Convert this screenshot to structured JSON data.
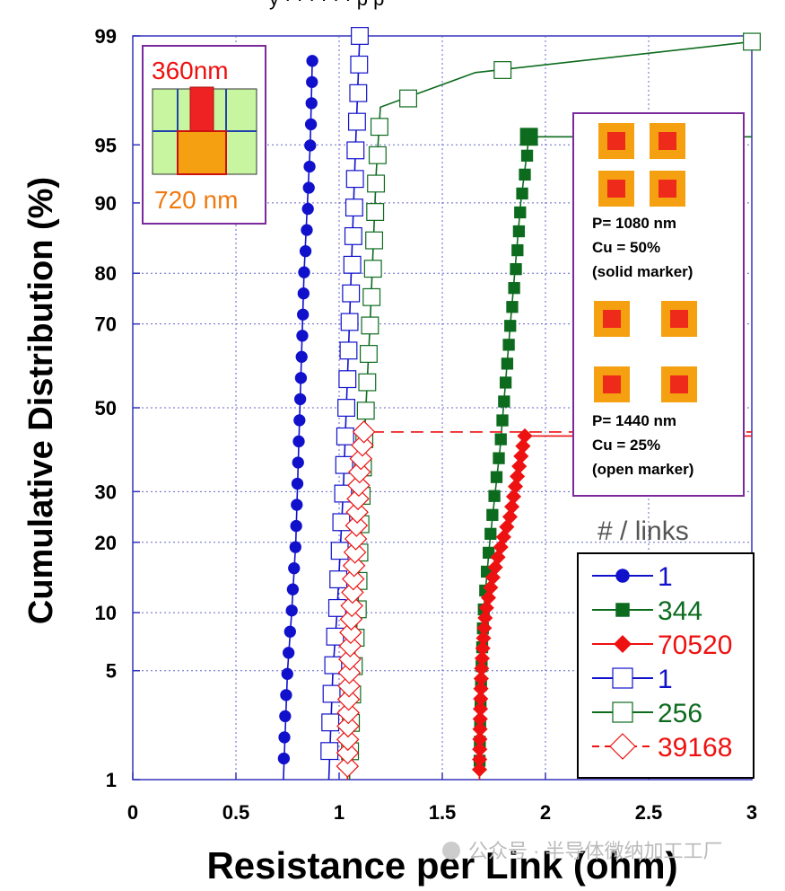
{
  "chart_data": {
    "type": "line",
    "top_caption": "y · · · · · · p  p",
    "xlabel": "Resistance per Link (ohm)",
    "ylabel": "Cumulative Distribution (%)",
    "xlim": [
      0,
      3
    ],
    "x_ticks": [
      "0",
      "0.5",
      "1",
      "1.5",
      "2",
      "2.5",
      "3"
    ],
    "y_scale": "normal-probability",
    "ylim": [
      1,
      99
    ],
    "y_ticks": [
      "1",
      "5",
      "10",
      "20",
      "30",
      "50",
      "70",
      "80",
      "90",
      "95",
      "99"
    ],
    "grid": true,
    "legend_title": "# / links",
    "series": [
      {
        "name": "1",
        "links": "1",
        "color": "#1111cc",
        "marker": "circle",
        "filled": true,
        "x": [
          0.73,
          0.75,
          0.77,
          0.79,
          0.81,
          0.83,
          0.86,
          0.87
        ],
        "y": [
          1,
          5,
          10,
          20,
          50,
          80,
          95,
          98.5
        ]
      },
      {
        "name": "344",
        "links": "344",
        "color": "#0d6b1e",
        "marker": "square",
        "filled": true,
        "x": [
          1.68,
          1.69,
          1.7,
          1.73,
          1.78,
          1.83,
          1.88,
          1.92,
          1.92,
          3.0
        ],
        "y": [
          1,
          5,
          10,
          20,
          40,
          70,
          90,
          95.5,
          95.5,
          95.5
        ]
      },
      {
        "name": "70520",
        "links": "70520",
        "color": "#ee1111",
        "marker": "diamond",
        "filled": true,
        "x": [
          1.68,
          1.69,
          1.71,
          1.75,
          1.83,
          1.87,
          1.9,
          3.0
        ],
        "y": [
          1,
          5,
          10,
          15,
          25,
          35,
          43,
          43
        ]
      },
      {
        "name": "1",
        "links": "1",
        "color": "#1111cc",
        "marker": "square",
        "filled": false,
        "x": [
          0.95,
          0.97,
          0.99,
          1.02,
          1.05,
          1.08,
          1.1
        ],
        "y": [
          1,
          5,
          10,
          30,
          70,
          95,
          99
        ]
      },
      {
        "name": "256",
        "links": "256",
        "color": "#0d6b1e",
        "marker": "square",
        "filled": false,
        "x": [
          1.05,
          1.07,
          1.09,
          1.12,
          1.15,
          1.18,
          1.2,
          1.66,
          3.0
        ],
        "y": [
          1,
          5,
          10,
          40,
          70,
          93,
          97,
          98.2,
          98.9
        ]
      },
      {
        "name": "39168",
        "links": "39168",
        "color": "#ee1111",
        "marker": "diamond",
        "filled": false,
        "x": [
          1.04,
          1.05,
          1.06,
          1.08,
          1.1,
          1.12,
          3.0
        ],
        "y": [
          1,
          5,
          10,
          20,
          35,
          44,
          44
        ]
      }
    ],
    "inset": {
      "top_label": "360nm",
      "bottom_label": "720 nm"
    },
    "pattern_box": {
      "dense": {
        "p": "P= 1080 nm",
        "cu": "Cu = 50%",
        "note": "(solid marker)"
      },
      "sparse": {
        "p": "P= 1440 nm",
        "cu": "Cu = 25%",
        "note": "(open  marker)"
      }
    }
  },
  "watermark": "公众号 · 半导体微纳加工工厂",
  "colors": {
    "axis_blue": "#3333bb",
    "grid": "#6666cc",
    "purple_frame": "#7a2a9a",
    "orange": "#f5a010",
    "red": "#ee1111",
    "light_green": "#c8f5a0"
  }
}
